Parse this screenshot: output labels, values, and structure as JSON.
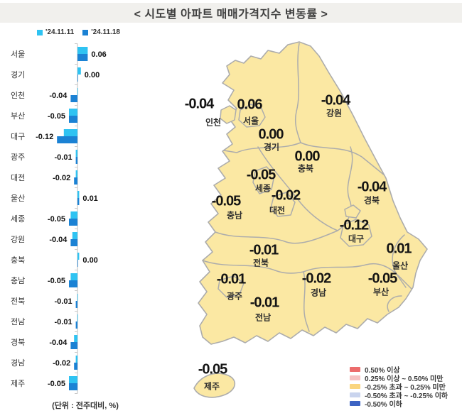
{
  "title": "< 시도별 아파트 매매가격지수 변동률 >",
  "footnote": "(단위 : 전주대비, %)",
  "bar_legend": [
    {
      "label": "'24.11.11",
      "color": "#2FC3F2"
    },
    {
      "label": "'24.11.18",
      "color": "#1B82D4"
    }
  ],
  "chart_data": {
    "type": "bar",
    "orientation": "horizontal",
    "title": "시도별 아파트 매매가격지수 변동률",
    "unit": "전주대비, %",
    "categories": [
      "서울",
      "경기",
      "인천",
      "부산",
      "대구",
      "광주",
      "대전",
      "울산",
      "세종",
      "강원",
      "충북",
      "충남",
      "전북",
      "전남",
      "경북",
      "경남",
      "제주"
    ],
    "series": [
      {
        "name": "'24.11.11",
        "color": "#2FC3F2",
        "values": [
          0.06,
          0.02,
          0.0,
          -0.05,
          -0.08,
          -0.01,
          -0.01,
          0.01,
          -0.04,
          -0.03,
          0.01,
          -0.04,
          0.0,
          0.0,
          -0.02,
          -0.01,
          -0.05
        ]
      },
      {
        "name": "'24.11.18",
        "color": "#1B82D4",
        "values": [
          0.06,
          0.0,
          -0.04,
          -0.05,
          -0.12,
          -0.01,
          -0.02,
          0.01,
          -0.05,
          -0.04,
          0.0,
          -0.05,
          -0.01,
          -0.01,
          -0.04,
          -0.02,
          -0.05
        ]
      }
    ],
    "labeled_series": "'24.11.18",
    "xlim": [
      -0.14,
      0.09
    ],
    "grid": false,
    "legend_position": "top"
  },
  "map": {
    "fill": "#FBE8A3",
    "border": "#ACACAC",
    "regions": [
      {
        "key": "incheon",
        "name": "인천",
        "value": "-0.04"
      },
      {
        "key": "seoul",
        "name": "서울",
        "value": "0.06"
      },
      {
        "key": "gyeonggi",
        "name": "경기",
        "value": "0.00"
      },
      {
        "key": "gangwon",
        "name": "강원",
        "value": "-0.04"
      },
      {
        "key": "chungbuk",
        "name": "충북",
        "value": "0.00"
      },
      {
        "key": "sejong",
        "name": "세종",
        "value": "-0.05"
      },
      {
        "key": "daejeon",
        "name": "대전",
        "value": "-0.02"
      },
      {
        "key": "chungnam",
        "name": "충남",
        "value": "-0.05"
      },
      {
        "key": "gyeongbuk",
        "name": "경북",
        "value": "-0.04"
      },
      {
        "key": "daegu",
        "name": "대구",
        "value": "-0.12"
      },
      {
        "key": "ulsan",
        "name": "울산",
        "value": "0.01"
      },
      {
        "key": "jeonbuk",
        "name": "전북",
        "value": "-0.01"
      },
      {
        "key": "gyeongnam",
        "name": "경남",
        "value": "-0.02"
      },
      {
        "key": "busan",
        "name": "부산",
        "value": "-0.05"
      },
      {
        "key": "gwangju",
        "name": "광주",
        "value": "-0.01"
      },
      {
        "key": "jeonnam",
        "name": "전남",
        "value": "-0.01"
      },
      {
        "key": "jeju",
        "name": "제주",
        "value": "-0.05"
      }
    ]
  },
  "map_legend": [
    {
      "label": "0.50% 이상",
      "color": "#EC6C6C"
    },
    {
      "label": "0.25% 이상 ~ 0.50% 미만",
      "color": "#F6C1C1"
    },
    {
      "label": "-0.25% 초과 ~ 0.25% 미만",
      "color": "#FAD57E"
    },
    {
      "label": "-0.50% 초과 ~ -0.25% 이하",
      "color": "#C9D4EE"
    },
    {
      "label": "-0.50% 이하",
      "color": "#3C63C3"
    }
  ]
}
